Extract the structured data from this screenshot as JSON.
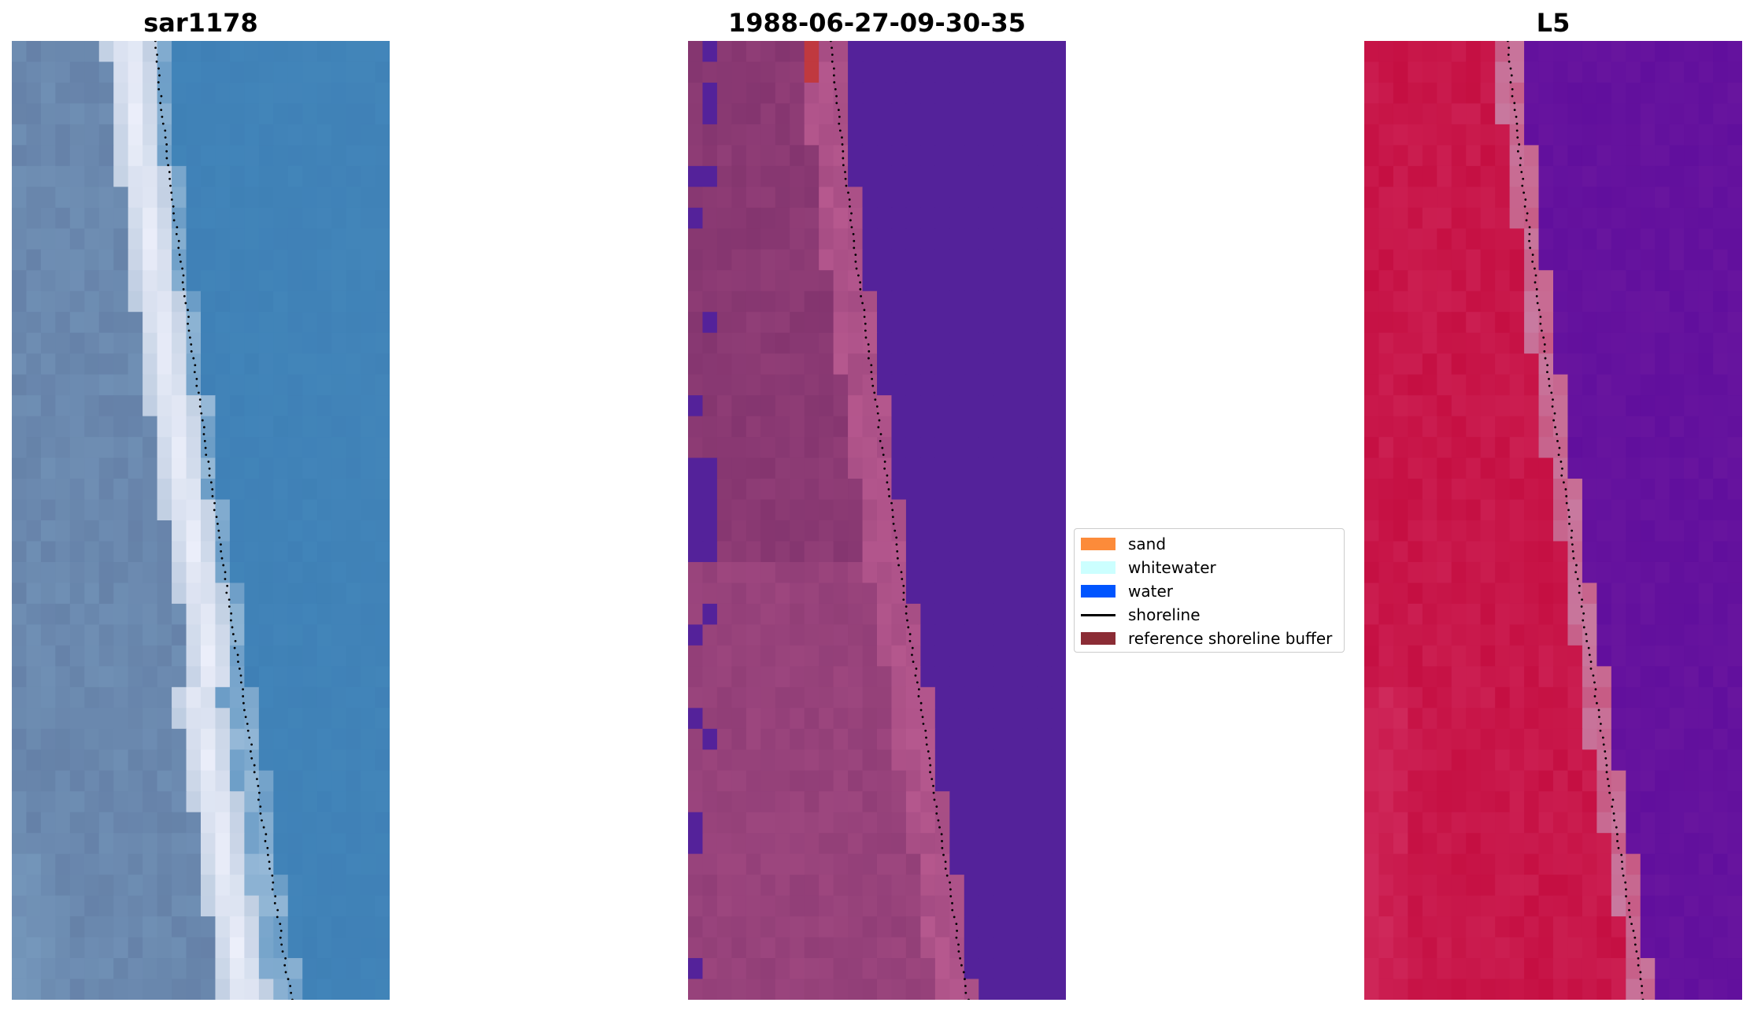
{
  "panels": [
    {
      "title": "sar1178",
      "style": "rgb"
    },
    {
      "title": "1988-06-27-09-30-35",
      "style": "classified"
    },
    {
      "title": "L5",
      "style": "index"
    }
  ],
  "legend": {
    "position": "center-right",
    "items": [
      {
        "label": "sand",
        "color": "#fc8b3a"
      },
      {
        "label": "whitewater",
        "color": "#ccffff"
      },
      {
        "label": "water",
        "color": "#0055ff"
      },
      {
        "label": "shoreline",
        "color": "#000000",
        "kind": "line"
      },
      {
        "label": "reference shoreline buffer",
        "color": "#8b2c35"
      }
    ]
  },
  "colors": {
    "rgb_water": "#3f80b6",
    "rgb_whitewater": "#eef0fb",
    "rgb_land": "#6f8fb4",
    "class_water": "#54229a",
    "class_land": "#84356f",
    "class_white": "#b6588e",
    "class_sand": "#c0393f",
    "index_land": "#c50f42",
    "index_water": "#610f9d",
    "index_mid": "#c87aa0"
  }
}
